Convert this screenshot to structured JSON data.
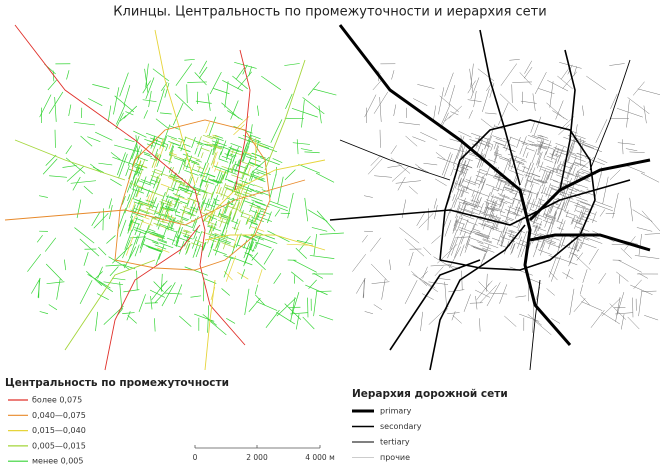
{
  "title": "Клинцы. Центральность по промежуточности и иерархия сети",
  "centrality_legend": {
    "title": "Центральность по промежуточности",
    "items": [
      {
        "label": "более 0,075",
        "color": "#e0302a"
      },
      {
        "label": "0,040—0,075",
        "color": "#e8892a"
      },
      {
        "label": "0,015—0,040",
        "color": "#e6d43a"
      },
      {
        "label": "0,005—0,015",
        "color": "#a4d63a"
      },
      {
        "label": "менее 0,005",
        "color": "#36d436"
      }
    ]
  },
  "hierarchy_legend": {
    "title": "Иерархия дорожной сети",
    "items": [
      {
        "label": "primary",
        "width": 3
      },
      {
        "label": "secondary",
        "width": 1.6
      },
      {
        "label": "tertiary",
        "width": 0.9
      },
      {
        "label": "прочие",
        "width": 0.5
      }
    ]
  },
  "scale_bar": {
    "labels": [
      "0",
      "2 000",
      "4 000 м"
    ]
  }
}
